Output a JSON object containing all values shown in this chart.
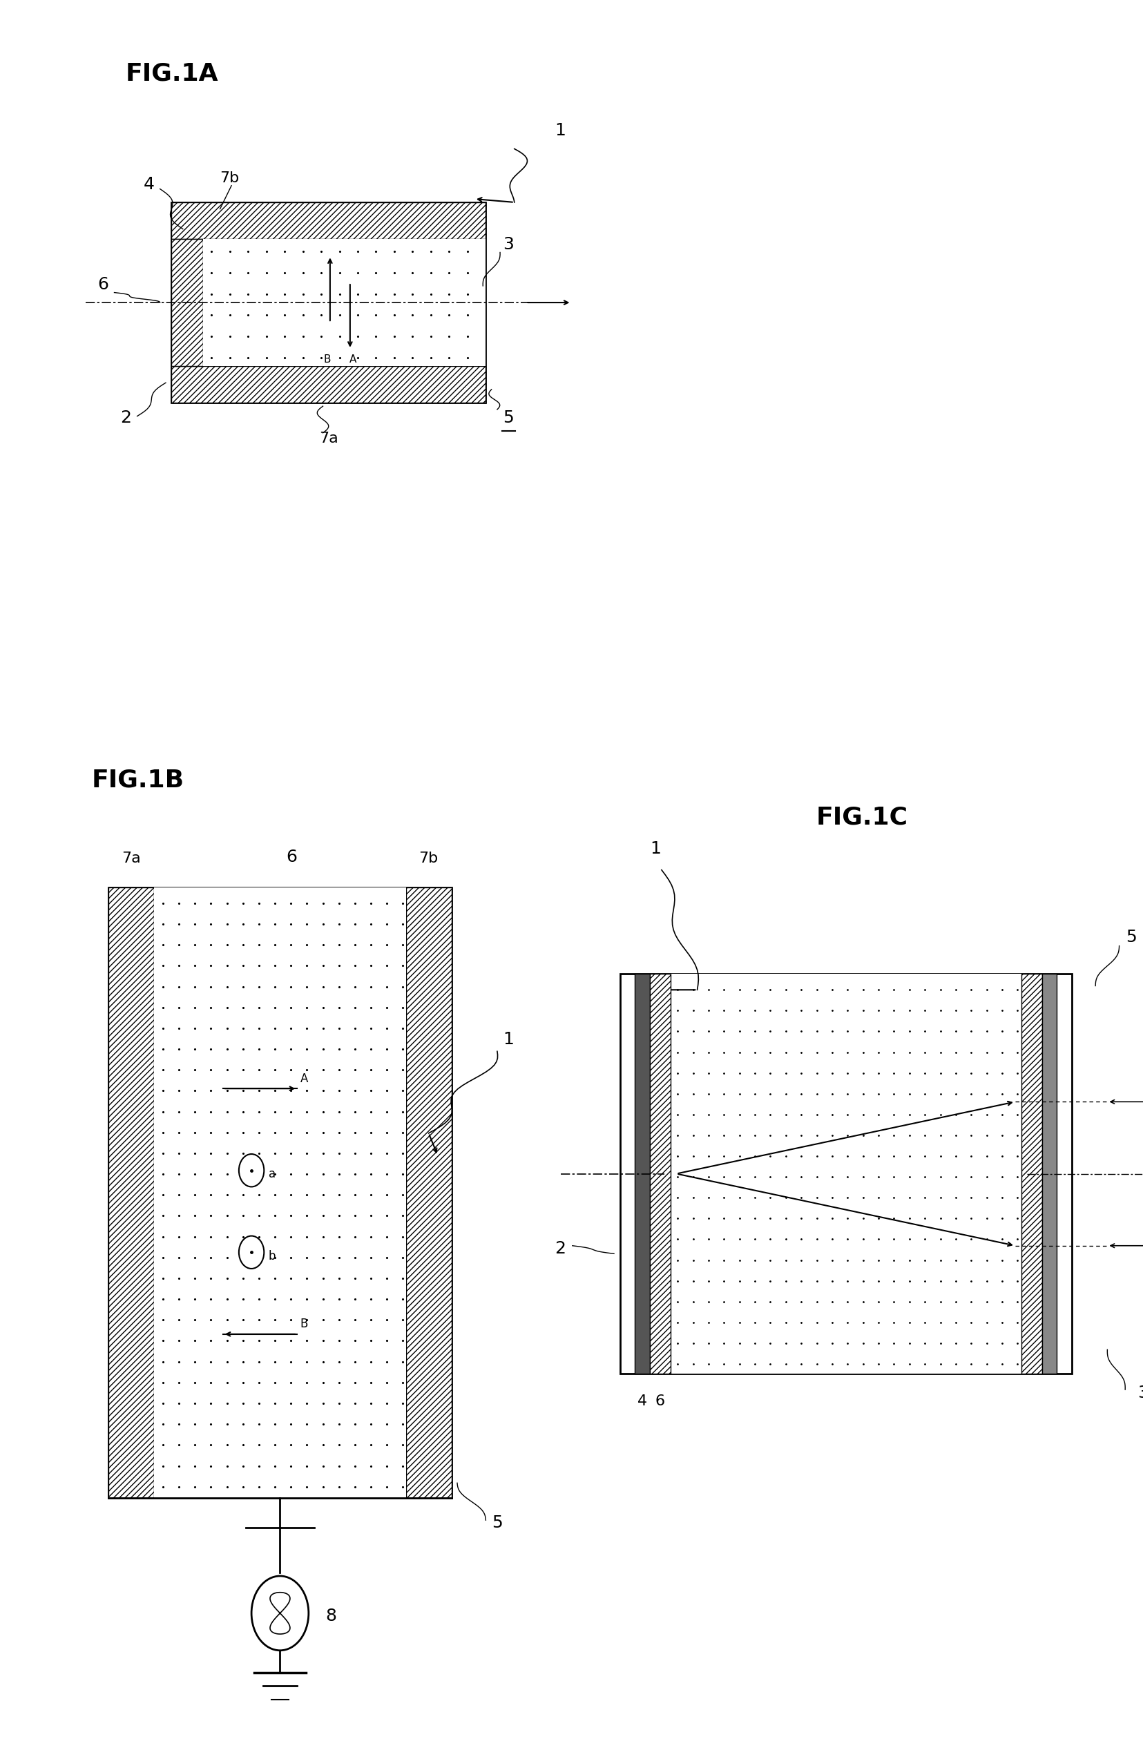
{
  "bg_color": "#ffffff",
  "fig_width": 16.55,
  "fig_height": 25.47,
  "title_fontsize": 26,
  "label_fontsize": 18,
  "small_fontsize": 14,
  "fig1a_title": "FIG.1A",
  "fig1b_title": "FIG.1B",
  "fig1c_title": "FIG.1C"
}
